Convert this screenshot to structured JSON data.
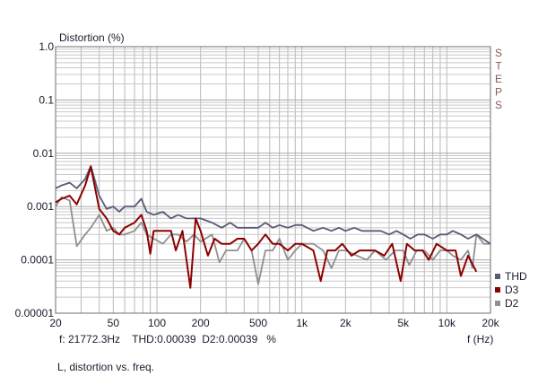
{
  "chart_data": {
    "type": "line",
    "title": "",
    "ylabel": "Distortion (%)",
    "xlabel": "f (Hz)",
    "x_scale": "log",
    "y_scale": "log",
    "xlim": [
      20,
      20000
    ],
    "ylim": [
      1e-05,
      1.0
    ],
    "grid": true,
    "x_ticks": [
      {
        "v": 20,
        "label": "20"
      },
      {
        "v": 50,
        "label": "50"
      },
      {
        "v": 100,
        "label": "100"
      },
      {
        "v": 200,
        "label": "200"
      },
      {
        "v": 500,
        "label": "500"
      },
      {
        "v": 1000,
        "label": "1k"
      },
      {
        "v": 2000,
        "label": "2k"
      },
      {
        "v": 5000,
        "label": "5k"
      },
      {
        "v": 10000,
        "label": "10k"
      },
      {
        "v": 20000,
        "label": "20k"
      }
    ],
    "y_ticks": [
      {
        "v": 1.0,
        "label": "1.0"
      },
      {
        "v": 0.1,
        "label": "0.1"
      },
      {
        "v": 0.01,
        "label": "0.01"
      },
      {
        "v": 0.001,
        "label": "0.001"
      },
      {
        "v": 0.0001,
        "label": "0.0001"
      },
      {
        "v": 1e-05,
        "label": "0.00001"
      }
    ],
    "legend_position": "bottom-right",
    "series": [
      {
        "name": "THD",
        "color": "#5a5a7a",
        "points": [
          [
            20,
            0.0022
          ],
          [
            22,
            0.0025
          ],
          [
            25,
            0.0028
          ],
          [
            28,
            0.0022
          ],
          [
            32,
            0.0033
          ],
          [
            35,
            0.0058
          ],
          [
            40,
            0.0016
          ],
          [
            45,
            0.0009
          ],
          [
            50,
            0.001
          ],
          [
            55,
            0.0008
          ],
          [
            60,
            0.001
          ],
          [
            70,
            0.001
          ],
          [
            78,
            0.0014
          ],
          [
            85,
            0.0008
          ],
          [
            95,
            0.0007
          ],
          [
            110,
            0.0008
          ],
          [
            125,
            0.0006
          ],
          [
            140,
            0.0007
          ],
          [
            160,
            0.0006
          ],
          [
            180,
            0.0006
          ],
          [
            200,
            0.0006
          ],
          [
            240,
            0.0005
          ],
          [
            280,
            0.0004
          ],
          [
            320,
            0.0005
          ],
          [
            360,
            0.0004
          ],
          [
            400,
            0.0004
          ],
          [
            450,
            0.0004
          ],
          [
            500,
            0.0004
          ],
          [
            560,
            0.0005
          ],
          [
            630,
            0.0004
          ],
          [
            700,
            0.00045
          ],
          [
            800,
            0.0004
          ],
          [
            900,
            0.00045
          ],
          [
            1000,
            0.00045
          ],
          [
            1200,
            0.00035
          ],
          [
            1400,
            0.0004
          ],
          [
            1600,
            0.00035
          ],
          [
            1800,
            0.0004
          ],
          [
            2000,
            0.00035
          ],
          [
            2300,
            0.0004
          ],
          [
            2600,
            0.00035
          ],
          [
            3000,
            0.00035
          ],
          [
            3500,
            0.00035
          ],
          [
            4000,
            0.0003
          ],
          [
            4500,
            0.00035
          ],
          [
            5000,
            0.0003
          ],
          [
            5600,
            0.00025
          ],
          [
            6300,
            0.0003
          ],
          [
            7000,
            0.0003
          ],
          [
            8000,
            0.00025
          ],
          [
            9000,
            0.0003
          ],
          [
            10000,
            0.0003
          ],
          [
            11000,
            0.00035
          ],
          [
            12500,
            0.0003
          ],
          [
            14000,
            0.00025
          ],
          [
            16000,
            0.0003
          ],
          [
            20000,
            0.0002
          ]
        ]
      },
      {
        "name": "D3",
        "color": "#8b0000",
        "points": [
          [
            20,
            0.0012
          ],
          [
            22,
            0.0014
          ],
          [
            25,
            0.0016
          ],
          [
            28,
            0.0011
          ],
          [
            32,
            0.0025
          ],
          [
            35,
            0.0056
          ],
          [
            40,
            0.0009
          ],
          [
            45,
            0.0006
          ],
          [
            50,
            0.00035
          ],
          [
            55,
            0.0003
          ],
          [
            60,
            0.0004
          ],
          [
            70,
            0.0005
          ],
          [
            78,
            0.0007
          ],
          [
            85,
            0.00035
          ],
          [
            90,
            0.00013
          ],
          [
            95,
            0.00035
          ],
          [
            110,
            0.00035
          ],
          [
            125,
            0.00035
          ],
          [
            135,
            0.00015
          ],
          [
            150,
            0.00035
          ],
          [
            170,
            3e-05
          ],
          [
            185,
            0.0006
          ],
          [
            200,
            0.00035
          ],
          [
            225,
            0.00012
          ],
          [
            250,
            0.00025
          ],
          [
            280,
            0.0002
          ],
          [
            320,
            0.0002
          ],
          [
            360,
            0.00025
          ],
          [
            400,
            0.00025
          ],
          [
            450,
            0.00015
          ],
          [
            500,
            0.0002
          ],
          [
            560,
            0.0003
          ],
          [
            630,
            0.0002
          ],
          [
            700,
            0.0002
          ],
          [
            800,
            0.00015
          ],
          [
            900,
            0.0002
          ],
          [
            1000,
            0.0002
          ],
          [
            1200,
            0.00015
          ],
          [
            1350,
            4e-05
          ],
          [
            1500,
            0.00015
          ],
          [
            1700,
            0.00015
          ],
          [
            1900,
            0.0002
          ],
          [
            2200,
            0.00012
          ],
          [
            2500,
            0.00015
          ],
          [
            2800,
            0.00015
          ],
          [
            3200,
            0.00015
          ],
          [
            3700,
            0.00012
          ],
          [
            4200,
            0.0002
          ],
          [
            4800,
            4e-05
          ],
          [
            5300,
            0.0002
          ],
          [
            6000,
            0.00015
          ],
          [
            6800,
            0.00015
          ],
          [
            7500,
            0.0001
          ],
          [
            8500,
            0.0002
          ],
          [
            10000,
            0.00015
          ],
          [
            11500,
            0.00015
          ],
          [
            12500,
            5e-05
          ],
          [
            14000,
            0.00012
          ],
          [
            16000,
            6e-05
          ]
        ]
      },
      {
        "name": "D2",
        "color": "#909090",
        "points": [
          [
            20,
            0.001
          ],
          [
            22,
            0.0015
          ],
          [
            25,
            0.0013
          ],
          [
            28,
            0.00018
          ],
          [
            32,
            0.0003
          ],
          [
            35,
            0.0004
          ],
          [
            40,
            0.0007
          ],
          [
            45,
            0.00035
          ],
          [
            50,
            0.0004
          ],
          [
            55,
            0.0003
          ],
          [
            60,
            0.0003
          ],
          [
            70,
            0.00035
          ],
          [
            78,
            0.0005
          ],
          [
            85,
            0.0003
          ],
          [
            95,
            0.00025
          ],
          [
            110,
            0.0002
          ],
          [
            125,
            0.0003
          ],
          [
            140,
            0.0003
          ],
          [
            160,
            0.00022
          ],
          [
            180,
            0.0003
          ],
          [
            200,
            0.00022
          ],
          [
            240,
            0.0003
          ],
          [
            270,
            9e-05
          ],
          [
            300,
            0.00015
          ],
          [
            360,
            0.00015
          ],
          [
            400,
            0.00025
          ],
          [
            450,
            0.00015
          ],
          [
            500,
            3.5e-05
          ],
          [
            560,
            0.00015
          ],
          [
            630,
            0.00015
          ],
          [
            700,
            0.00025
          ],
          [
            800,
            0.0001
          ],
          [
            900,
            0.00015
          ],
          [
            1000,
            0.0002
          ],
          [
            1200,
            0.0002
          ],
          [
            1400,
            0.00015
          ],
          [
            1600,
            7e-05
          ],
          [
            1800,
            0.00015
          ],
          [
            2000,
            0.00015
          ],
          [
            2400,
            0.00012
          ],
          [
            2800,
            0.0001
          ],
          [
            3200,
            0.00015
          ],
          [
            3800,
            0.0001
          ],
          [
            4400,
            0.00015
          ],
          [
            5000,
            0.00015
          ],
          [
            5500,
            8e-05
          ],
          [
            6200,
            0.00015
          ],
          [
            7000,
            0.00015
          ],
          [
            8000,
            0.0001
          ],
          [
            9000,
            0.00015
          ],
          [
            10000,
            0.00015
          ],
          [
            11000,
            0.00012
          ],
          [
            12500,
            0.0001
          ],
          [
            14000,
            0.00015
          ],
          [
            15000,
            7e-05
          ],
          [
            16000,
            0.0003
          ],
          [
            18000,
            0.0002
          ],
          [
            20000,
            0.0002
          ]
        ]
      }
    ]
  },
  "brand_letters": [
    "S",
    "T",
    "E",
    "P",
    "S"
  ],
  "readout": {
    "frequency": "f: 21772.3Hz",
    "thd": "THD:0.00039",
    "d2": "D2:0.00039",
    "unit": "%"
  },
  "caption": "L, distortion vs. freq."
}
